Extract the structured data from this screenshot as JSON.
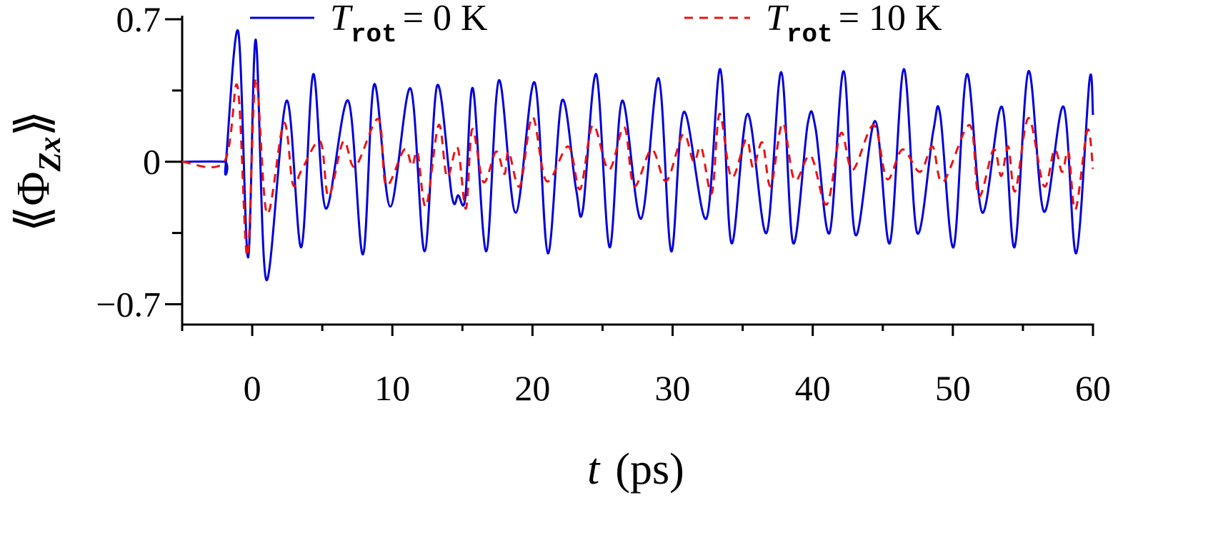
{
  "chart_data": {
    "type": "line",
    "xlabel": [
      "t",
      "(ps)"
    ],
    "ylabel": [
      "⟪Φ",
      "Zx",
      "⟫"
    ],
    "xlim": [
      -5,
      60
    ],
    "xticks": [
      0,
      10,
      20,
      30,
      40,
      50,
      60
    ],
    "xticks_minor": [
      -5,
      5,
      15,
      25,
      35,
      45,
      55
    ],
    "ylim": [
      -0.8,
      0.7
    ],
    "yticks": [
      {
        "value": -0.7,
        "label": "−0.7"
      },
      0,
      0.7
    ],
    "yticks_minor": [
      -0.35,
      0.35
    ],
    "legend": "upper center",
    "series": [
      {
        "name": {
          "symbol": "T",
          "subscript": "rot",
          "text": "= 0 K"
        },
        "color": "#0000dd",
        "dash": "solid",
        "x": [
          -5,
          -2,
          -1.9,
          -1.0,
          -0.3,
          0.25,
          1.0,
          2.45,
          3.5,
          4.35,
          5.25,
          6.85,
          7.9,
          8.7,
          9.85,
          11.3,
          12.3,
          13.2,
          14.25,
          14.7,
          15.2,
          15.75,
          16.7,
          17.6,
          18.8,
          20.15,
          21.1,
          22.1,
          23.1,
          23.6,
          24.55,
          25.5,
          26.4,
          27.75,
          29.0,
          29.9,
          30.8,
          32.4,
          33.4,
          34.2,
          35.35,
          36.7,
          37.75,
          38.6,
          39.65,
          40.2,
          41.2,
          42.2,
          43.05,
          44.45,
          45.5,
          46.5,
          47.45,
          48.6,
          49.1,
          50.05,
          51.0,
          52.1,
          53.5,
          54.4,
          55.4,
          56.5,
          57.9,
          58.8,
          59.75,
          60
        ],
        "values": [
          0,
          0,
          -0.02,
          0.64,
          -0.47,
          0.6,
          -0.58,
          0.3,
          -0.42,
          0.43,
          -0.23,
          0.3,
          -0.455,
          0.38,
          -0.22,
          0.36,
          -0.44,
          0.375,
          -0.17,
          -0.165,
          -0.18,
          0.36,
          -0.44,
          0.4,
          -0.25,
          0.39,
          -0.45,
          0.3,
          -0.13,
          -0.235,
          0.43,
          -0.42,
          0.3,
          -0.28,
          0.41,
          -0.44,
          0.245,
          -0.28,
          0.455,
          -0.4,
          0.235,
          -0.35,
          0.44,
          -0.4,
          0.19,
          0.165,
          -0.35,
          0.445,
          -0.36,
          0.2,
          -0.4,
          0.455,
          -0.35,
          0.15,
          0.23,
          -0.42,
          0.43,
          -0.25,
          0.27,
          -0.42,
          0.445,
          -0.245,
          0.27,
          -0.45,
          0.4,
          0.23
        ]
      },
      {
        "name": {
          "symbol": "T",
          "subscript": "rot",
          "text": "= 10 K"
        },
        "color": "#ee1111",
        "dash": "dashed",
        "x": [
          -5,
          -2,
          -1.05,
          -0.35,
          0.25,
          1.05,
          2.25,
          2.9,
          3.5,
          4.85,
          5.45,
          6.5,
          7.35,
          9.0,
          9.55,
          10.85,
          11.4,
          11.8,
          12.4,
          13.3,
          13.9,
          14.65,
          15.25,
          15.7,
          16.5,
          17.4,
          18.0,
          18.3,
          19.1,
          20.0,
          21.0,
          22.55,
          23.4,
          24.3,
          25.45,
          26.55,
          27.25,
          28.5,
          29.55,
          30.75,
          31.5,
          32.05,
          32.8,
          33.35,
          34.2,
          35.25,
          35.75,
          36.4,
          37.0,
          37.85,
          38.7,
          39.85,
          41.0,
          42.0,
          42.85,
          44.35,
          45.3,
          46.4,
          47.65,
          48.55,
          49.3,
          51.2,
          51.85,
          52.9,
          53.45,
          53.95,
          54.45,
          55.4,
          56.5,
          57.25,
          57.8,
          58.25,
          58.75,
          59.6,
          60
        ],
        "values": [
          0,
          0,
          0.37,
          -0.465,
          0.41,
          -0.255,
          0.19,
          -0.11,
          -0.045,
          0.1,
          -0.17,
          0.1,
          -0.025,
          0.21,
          -0.115,
          0.06,
          -0.02,
          0.045,
          -0.22,
          0.18,
          -0.075,
          0.07,
          -0.23,
          0.16,
          -0.1,
          0.05,
          -0.06,
          0.05,
          -0.12,
          0.22,
          -0.095,
          0.075,
          -0.135,
          0.18,
          -0.04,
          0.17,
          -0.12,
          0.06,
          -0.095,
          0.135,
          0,
          0.07,
          -0.155,
          0.235,
          -0.077,
          0.11,
          -0.03,
          0.095,
          -0.12,
          0.19,
          -0.09,
          0.03,
          -0.21,
          0.14,
          -0.04,
          0.18,
          -0.085,
          0.06,
          -0.05,
          0.075,
          -0.1,
          0.18,
          -0.17,
          0.06,
          -0.07,
          0.075,
          -0.145,
          0.215,
          -0.12,
          0.06,
          -0.05,
          0.05,
          -0.235,
          0.155,
          -0.035
        ]
      }
    ]
  }
}
